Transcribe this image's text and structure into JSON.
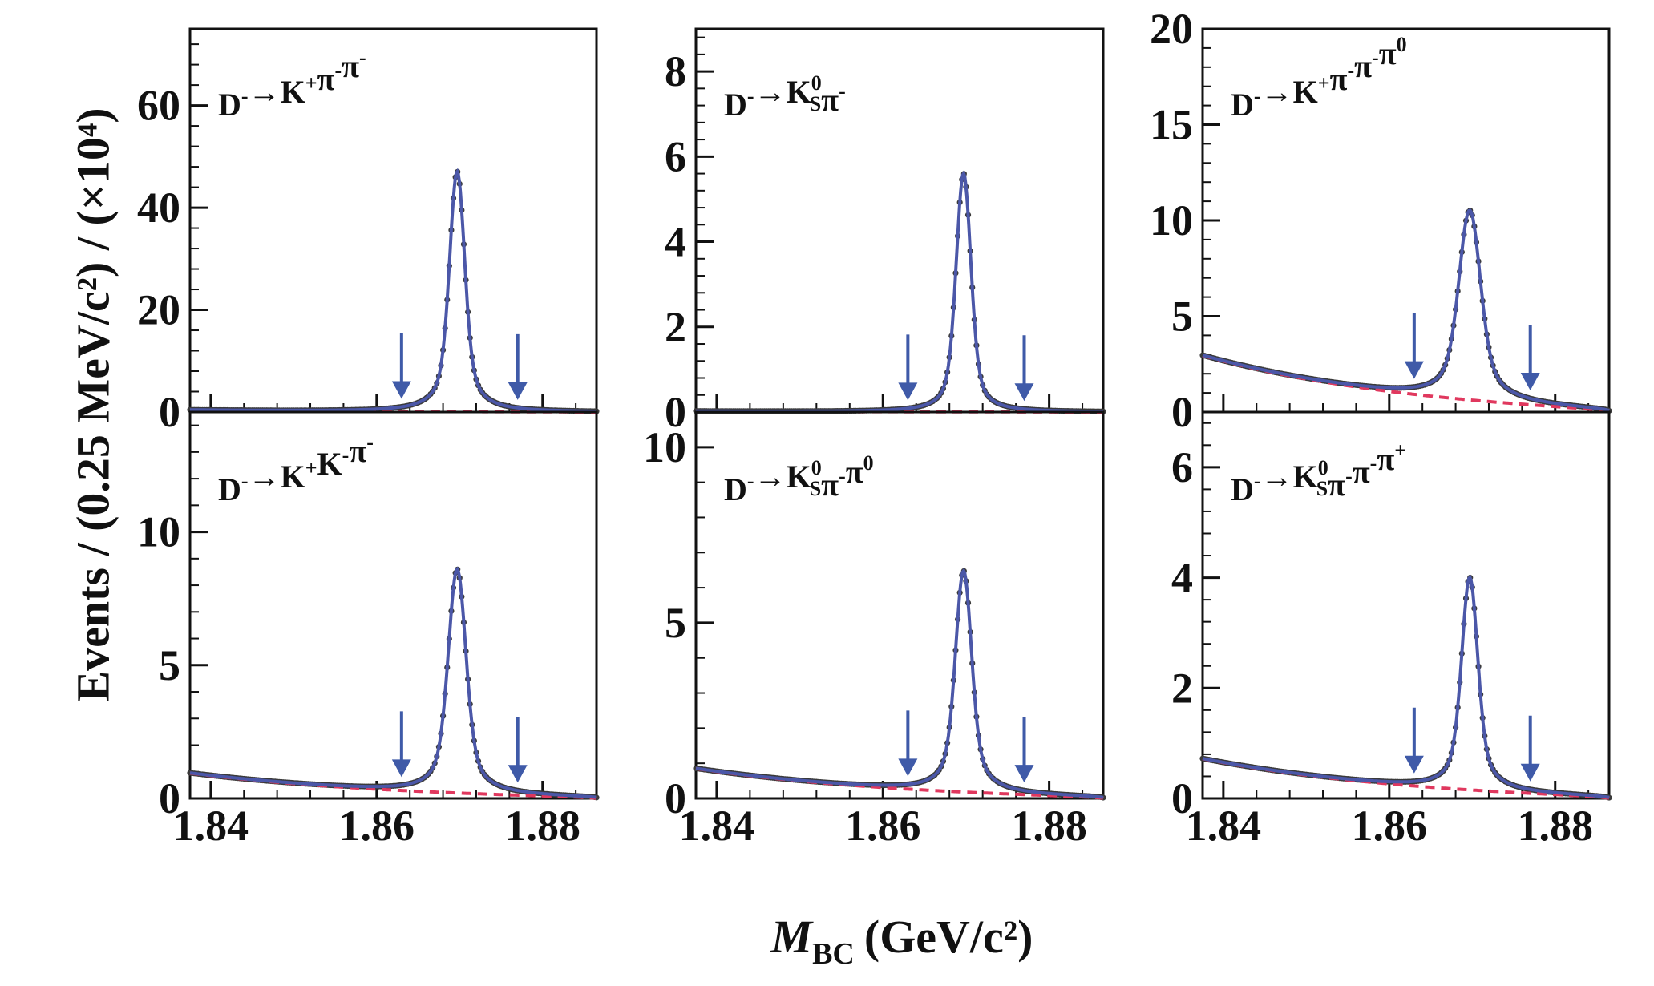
{
  "figure": {
    "ylabel": "Events / (0.25 MeV/c²) / (×10⁴)",
    "xlabel_main": "M",
    "xlabel_sub": "BC",
    "xlabel_units": "(GeV/c²)"
  },
  "chart_data": [
    {
      "type": "line",
      "panel": "top-left",
      "label": "D⁻→K⁺π⁻π⁻",
      "label_parts": [
        [
          "t",
          "D"
        ],
        [
          "sup",
          "-"
        ],
        [
          "t",
          "→K"
        ],
        [
          "sup",
          "+"
        ],
        [
          "t",
          "π"
        ],
        [
          "sup",
          "-"
        ],
        [
          "t",
          "π"
        ],
        [
          "sup",
          "-"
        ]
      ],
      "xlim": [
        1.8375,
        1.8865
      ],
      "ylim": [
        0,
        75
      ],
      "yticks": [
        0,
        20,
        40,
        60
      ],
      "xticks": [
        1.84,
        1.86,
        1.88
      ],
      "signal": {
        "peak": 1.8697,
        "height": 47,
        "sigma": 0.00085,
        "gamma": 0.0015
      },
      "background": {
        "level": 0.4,
        "endpoint": 1.8865
      },
      "signal_window": [
        1.863,
        1.877
      ],
      "series": [
        {
          "name": "Data",
          "kind": "points"
        },
        {
          "name": "Total fit",
          "kind": "solid"
        },
        {
          "name": "Background",
          "kind": "dashed"
        }
      ]
    },
    {
      "type": "line",
      "panel": "top-middle",
      "label": "D⁻→K⁰Sπ⁻",
      "label_parts": [
        [
          "t",
          "D"
        ],
        [
          "sup",
          "-"
        ],
        [
          "t",
          "→K"
        ],
        [
          "supsub",
          "0",
          "S"
        ],
        [
          "t",
          "π"
        ],
        [
          "sup",
          "-"
        ]
      ],
      "xlim": [
        1.8375,
        1.8865
      ],
      "ylim": [
        0,
        9
      ],
      "yticks": [
        0,
        2,
        4,
        6,
        8
      ],
      "xticks": [
        1.84,
        1.86,
        1.88
      ],
      "signal": {
        "peak": 1.8697,
        "height": 5.6,
        "sigma": 0.00085,
        "gamma": 0.0013
      },
      "background": {
        "level": 0.02,
        "endpoint": 1.8865
      },
      "signal_window": [
        1.863,
        1.877
      ]
    },
    {
      "type": "line",
      "panel": "top-right",
      "label": "D⁻→K⁺π⁻π⁻π⁰",
      "label_parts": [
        [
          "t",
          "D"
        ],
        [
          "sup",
          "-"
        ],
        [
          "t",
          "→K"
        ],
        [
          "sup",
          "+"
        ],
        [
          "t",
          "π"
        ],
        [
          "sup",
          "-"
        ],
        [
          "t",
          "π"
        ],
        [
          "sup",
          "-"
        ],
        [
          "t",
          "π"
        ],
        [
          "sup",
          "0"
        ]
      ],
      "xlim": [
        1.8375,
        1.8865
      ],
      "ylim": [
        0,
        20
      ],
      "yticks": [
        0,
        5,
        10,
        15,
        20
      ],
      "xticks": [
        1.84,
        1.86,
        1.88
      ],
      "signal": {
        "peak": 1.8697,
        "height": 9.9,
        "sigma": 0.0012,
        "gamma": 0.0022
      },
      "background": {
        "level": 2.95,
        "endpoint": 1.8865
      },
      "signal_window": [
        1.863,
        1.877
      ]
    },
    {
      "type": "line",
      "panel": "bottom-left",
      "label": "D⁻→K⁺K⁻π⁻",
      "label_parts": [
        [
          "t",
          "D"
        ],
        [
          "sup",
          "-"
        ],
        [
          "t",
          "→K"
        ],
        [
          "sup",
          "+"
        ],
        [
          "t",
          "K"
        ],
        [
          "sup",
          "-"
        ],
        [
          "t",
          "π"
        ],
        [
          "sup",
          "-"
        ]
      ],
      "xlim": [
        1.8375,
        1.8865
      ],
      "ylim": [
        0,
        14.5
      ],
      "yticks": [
        0,
        5,
        10
      ],
      "xticks": [
        1.84,
        1.86,
        1.88
      ],
      "signal": {
        "peak": 1.8697,
        "height": 8.4,
        "sigma": 0.001,
        "gamma": 0.0017
      },
      "background": {
        "level": 0.95,
        "endpoint": 1.8865
      },
      "signal_window": [
        1.863,
        1.877
      ]
    },
    {
      "type": "line",
      "panel": "bottom-middle",
      "label": "D⁻→K⁰Sπ⁻π⁰",
      "label_parts": [
        [
          "t",
          "D"
        ],
        [
          "sup",
          "-"
        ],
        [
          "t",
          "→K"
        ],
        [
          "supsub",
          "0",
          "S"
        ],
        [
          "t",
          "π"
        ],
        [
          "sup",
          "-"
        ],
        [
          "t",
          "π"
        ],
        [
          "sup",
          "0"
        ]
      ],
      "xlim": [
        1.8375,
        1.8865
      ],
      "ylim": [
        0,
        11
      ],
      "yticks": [
        0,
        5,
        10
      ],
      "xticks": [
        1.84,
        1.86,
        1.88
      ],
      "signal": {
        "peak": 1.8697,
        "height": 6.3,
        "sigma": 0.0009,
        "gamma": 0.0016
      },
      "background": {
        "level": 0.85,
        "endpoint": 1.8865
      },
      "signal_window": [
        1.863,
        1.877
      ]
    },
    {
      "type": "line",
      "panel": "bottom-right",
      "label": "D⁻→K⁰Sπ⁻π⁻π⁺",
      "label_parts": [
        [
          "t",
          "D"
        ],
        [
          "sup",
          "-"
        ],
        [
          "t",
          "→K"
        ],
        [
          "supsub",
          "0",
          "S"
        ],
        [
          "t",
          "π"
        ],
        [
          "sup",
          "-"
        ],
        [
          "t",
          "π"
        ],
        [
          "sup",
          "-"
        ],
        [
          "t",
          "π"
        ],
        [
          "sup",
          "+"
        ]
      ],
      "xlim": [
        1.8375,
        1.8865
      ],
      "ylim": [
        0,
        7
      ],
      "yticks": [
        0,
        2,
        4,
        6
      ],
      "xticks": [
        1.84,
        1.86,
        1.88
      ],
      "signal": {
        "peak": 1.8697,
        "height": 3.85,
        "sigma": 0.0009,
        "gamma": 0.0016
      },
      "background": {
        "level": 0.72,
        "endpoint": 1.8865
      },
      "signal_window": [
        1.863,
        1.877
      ]
    }
  ],
  "colors": {
    "data_points": "#3a3a3a",
    "fit_line": "#4b57a8",
    "background_line": "#e0385e",
    "arrows": "#3f5aa8",
    "axes": "#111111"
  }
}
